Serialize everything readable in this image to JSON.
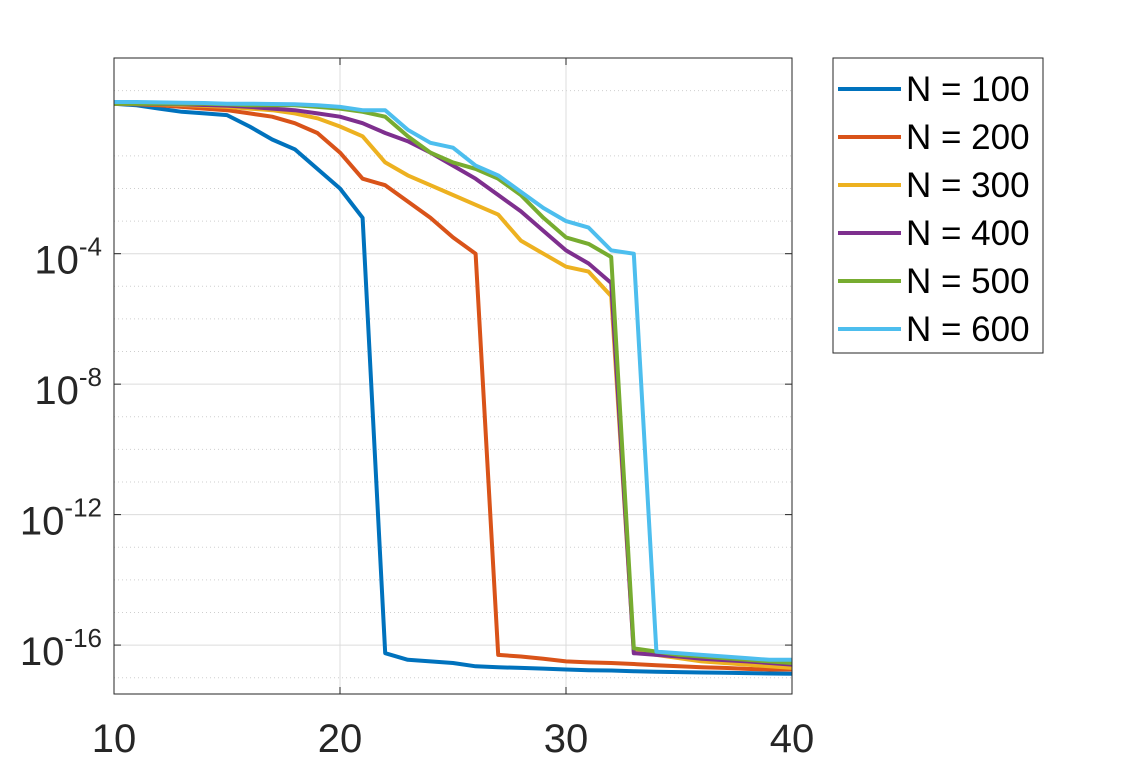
{
  "chart_data": {
    "type": "line",
    "title": "",
    "xlabel": "",
    "ylabel": "",
    "xlim": [
      10,
      40
    ],
    "ylim": [
      -17.5,
      2
    ],
    "yscale": "log",
    "grid": true,
    "minor_grid": true,
    "legend_position": "outside-top-right",
    "x_ticks": [
      {
        "value": 10,
        "label": "10"
      },
      {
        "value": 20,
        "label": "20"
      },
      {
        "value": 30,
        "label": "30"
      },
      {
        "value": 40,
        "label": "40"
      }
    ],
    "y_ticks": [
      {
        "exp": -4,
        "base": "10",
        "sup": "-4"
      },
      {
        "exp": -8,
        "base": "10",
        "sup": "-8"
      },
      {
        "exp": -12,
        "base": "10",
        "sup": "-12"
      },
      {
        "exp": -16,
        "base": "10",
        "sup": "-16"
      }
    ],
    "series": [
      {
        "name": "N = 100",
        "color": "#0072BD",
        "x": [
          10,
          11,
          12,
          13,
          14,
          15,
          16,
          17,
          18,
          19,
          20,
          21,
          22,
          23,
          24,
          25,
          26,
          27,
          28,
          29,
          30,
          31,
          32,
          33,
          34,
          35,
          36,
          37,
          38,
          39,
          40
        ],
        "log10_y": [
          0.6,
          0.55,
          0.45,
          0.35,
          0.3,
          0.25,
          -0.1,
          -0.5,
          -0.8,
          -1.4,
          -2.0,
          -2.9,
          -16.25,
          -16.45,
          -16.5,
          -16.55,
          -16.65,
          -16.68,
          -16.7,
          -16.72,
          -16.75,
          -16.77,
          -16.78,
          -16.8,
          -16.82,
          -16.83,
          -16.84,
          -16.85,
          -16.86,
          -16.87,
          -16.88
        ]
      },
      {
        "name": "N = 200",
        "color": "#D95319",
        "x": [
          10,
          11,
          12,
          13,
          14,
          15,
          16,
          17,
          18,
          19,
          20,
          21,
          22,
          23,
          24,
          25,
          26,
          27,
          28,
          29,
          30,
          31,
          32,
          33,
          34,
          35,
          36,
          37,
          38,
          39,
          40
        ],
        "log10_y": [
          0.6,
          0.58,
          0.55,
          0.5,
          0.45,
          0.4,
          0.3,
          0.2,
          0.0,
          -0.3,
          -0.9,
          -1.7,
          -1.9,
          -2.4,
          -2.9,
          -3.5,
          -4.0,
          -16.3,
          -16.35,
          -16.42,
          -16.5,
          -16.53,
          -16.55,
          -16.58,
          -16.62,
          -16.65,
          -16.68,
          -16.7,
          -16.73,
          -16.75,
          -16.75
        ]
      },
      {
        "name": "N = 300",
        "color": "#EDB120",
        "x": [
          10,
          11,
          12,
          13,
          14,
          15,
          16,
          17,
          18,
          19,
          20,
          21,
          22,
          23,
          24,
          25,
          26,
          27,
          28,
          29,
          30,
          31,
          32,
          33,
          34,
          35,
          36,
          37,
          38,
          39,
          40
        ],
        "log10_y": [
          0.6,
          0.59,
          0.58,
          0.56,
          0.53,
          0.5,
          0.45,
          0.4,
          0.3,
          0.15,
          -0.1,
          -0.4,
          -1.2,
          -1.6,
          -1.9,
          -2.2,
          -2.5,
          -2.8,
          -3.6,
          -4.0,
          -4.4,
          -4.55,
          -5.3,
          -16.2,
          -16.3,
          -16.4,
          -16.5,
          -16.55,
          -16.6,
          -16.65,
          -16.7
        ]
      },
      {
        "name": "N = 400",
        "color": "#7E2F8E",
        "x": [
          10,
          11,
          12,
          13,
          14,
          15,
          16,
          17,
          18,
          19,
          20,
          21,
          22,
          23,
          24,
          25,
          26,
          27,
          28,
          29,
          30,
          31,
          32,
          33,
          34,
          35,
          36,
          37,
          38,
          39,
          40
        ],
        "log10_y": [
          0.6,
          0.6,
          0.59,
          0.58,
          0.56,
          0.54,
          0.5,
          0.45,
          0.4,
          0.3,
          0.2,
          0.0,
          -0.3,
          -0.55,
          -0.9,
          -1.3,
          -1.7,
          -2.2,
          -2.7,
          -3.3,
          -3.9,
          -4.3,
          -4.9,
          -16.25,
          -16.3,
          -16.35,
          -16.42,
          -16.46,
          -16.5,
          -16.55,
          -16.6
        ]
      },
      {
        "name": "N = 500",
        "color": "#77AC30",
        "x": [
          10,
          11,
          12,
          13,
          14,
          15,
          16,
          17,
          18,
          19,
          20,
          21,
          22,
          23,
          24,
          25,
          26,
          27,
          28,
          29,
          30,
          31,
          32,
          33,
          34,
          35,
          36,
          37,
          38,
          39,
          40
        ],
        "log10_y": [
          0.6,
          0.6,
          0.6,
          0.6,
          0.6,
          0.58,
          0.55,
          0.55,
          0.55,
          0.5,
          0.45,
          0.35,
          0.2,
          -0.4,
          -0.9,
          -1.2,
          -1.4,
          -1.7,
          -2.2,
          -2.9,
          -3.5,
          -3.7,
          -4.1,
          -16.1,
          -16.2,
          -16.3,
          -16.35,
          -16.4,
          -16.45,
          -16.5,
          -16.55
        ]
      },
      {
        "name": "N = 600",
        "color": "#4DBEEE",
        "x": [
          10,
          11,
          12,
          13,
          14,
          15,
          16,
          17,
          18,
          19,
          20,
          21,
          22,
          23,
          24,
          25,
          26,
          27,
          28,
          29,
          30,
          31,
          32,
          33,
          34,
          35,
          36,
          37,
          38,
          39,
          40
        ],
        "log10_y": [
          0.65,
          0.65,
          0.64,
          0.63,
          0.62,
          0.6,
          0.6,
          0.59,
          0.58,
          0.55,
          0.5,
          0.4,
          0.4,
          -0.2,
          -0.6,
          -0.75,
          -1.3,
          -1.6,
          -2.1,
          -2.6,
          -3.0,
          -3.2,
          -3.9,
          -4.0,
          -16.2,
          -16.25,
          -16.3,
          -16.35,
          -16.4,
          -16.45,
          -16.45
        ]
      }
    ]
  }
}
